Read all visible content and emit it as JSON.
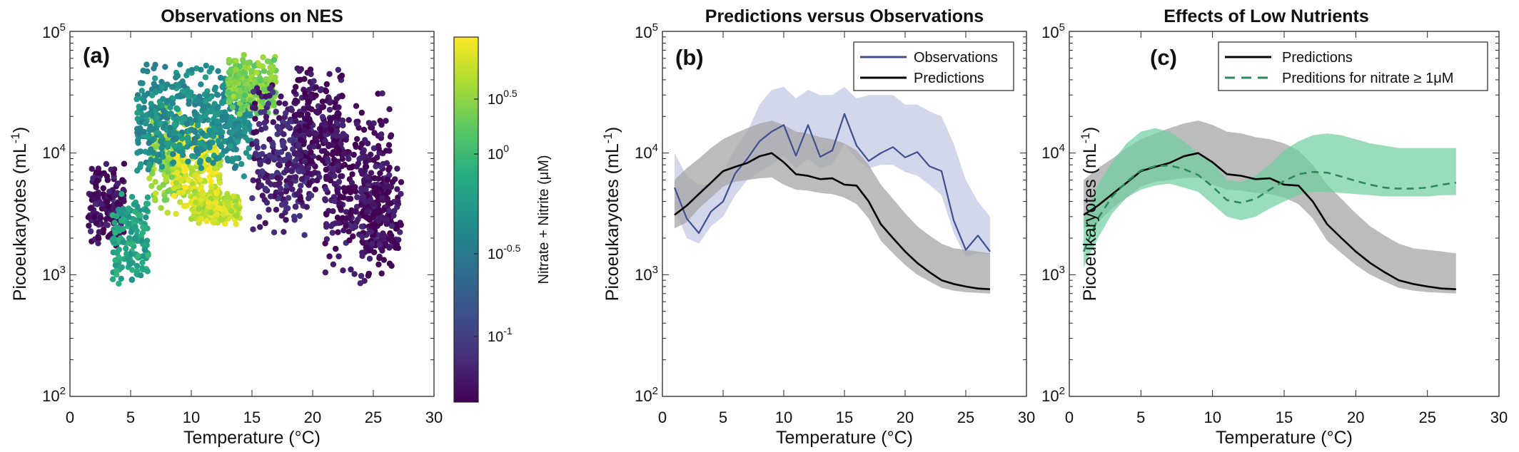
{
  "figure": {
    "panel_titles": [
      "Observations on NES",
      "Predictions versus Observations",
      "Effects of Low Nutrients"
    ],
    "panel_labels": [
      "(a)",
      "(b)",
      "(c)"
    ],
    "xlabel": "Temperature (°C)",
    "ylabel_main": "Picoeukaryotes (mL",
    "ylabel_sup": "-1",
    "ylabel_end": ")",
    "xticks": [
      "0",
      "5",
      "10",
      "15",
      "20",
      "25",
      "30"
    ],
    "yticks": [
      {
        "base": "10",
        "exp": "2"
      },
      {
        "base": "10",
        "exp": "3"
      },
      {
        "base": "10",
        "exp": "4"
      },
      {
        "base": "10",
        "exp": "5"
      }
    ],
    "colorbar": {
      "label": "Nitrate + Nitrite (μM)",
      "ticks": [
        {
          "base": "10",
          "exp": "0.5"
        },
        {
          "base": "10",
          "exp": "0"
        },
        {
          "base": "10",
          "exp": "-0.5"
        },
        {
          "base": "10",
          "exp": "-1"
        }
      ]
    },
    "legend_b": [
      "Observations",
      "Predictions"
    ],
    "legend_c": [
      "Predictions",
      "Preditions for nitrate ≥ 1μM"
    ],
    "colors": {
      "observations": "#3f4f8f",
      "observations_band": "#c3c9e4",
      "predictions": "#000000",
      "predictions_band": "#a6a6a6",
      "lownut": "#2b8a5a",
      "lownut_band": "#6fcf9f"
    }
  },
  "chart_data": [
    {
      "type": "scatter",
      "title": "Observations on NES",
      "xlabel": "Temperature (°C)",
      "ylabel": "Picoeukaryotes (mL-1)",
      "xlim": [
        0,
        30
      ],
      "ylim": [
        100,
        100000
      ],
      "yscale": "log",
      "color_scale": {
        "variable": "Nitrate + Nitrite (μM)",
        "scale": "log",
        "range": [
          0.05,
          8
        ],
        "colormap": "viridis"
      },
      "clusters": [
        {
          "x_range": [
            1.5,
            4.5
          ],
          "y_range": [
            1500,
            9000
          ],
          "nitrate_uM": 0.06
        },
        {
          "x_range": [
            3.5,
            6.5
          ],
          "y_range": [
            800,
            5000
          ],
          "nitrate_uM": 1.0
        },
        {
          "x_range": [
            6.5,
            9.5
          ],
          "y_range": [
            3000,
            30000
          ],
          "nitrate_uM": 3.5
        },
        {
          "x_range": [
            8.5,
            12.5
          ],
          "y_range": [
            2500,
            20000
          ],
          "nitrate_uM": 6.0
        },
        {
          "x_range": [
            10,
            14
          ],
          "y_range": [
            2500,
            5000
          ],
          "nitrate_uM": 5.0
        },
        {
          "x_range": [
            5.5,
            15
          ],
          "y_range": [
            6000,
            60000
          ],
          "nitrate_uM": 0.6
        },
        {
          "x_range": [
            13,
            17
          ],
          "y_range": [
            20000,
            65000
          ],
          "nitrate_uM": 3.0
        },
        {
          "x_range": [
            15,
            20
          ],
          "y_range": [
            2000,
            40000
          ],
          "nitrate_uM": 0.08
        },
        {
          "x_range": [
            18.5,
            22.5
          ],
          "y_range": [
            4000,
            60000
          ],
          "nitrate_uM": 0.06
        },
        {
          "x_range": [
            21,
            26.5
          ],
          "y_range": [
            700,
            40000
          ],
          "nitrate_uM": 0.06
        },
        {
          "x_range": [
            24,
            27.3
          ],
          "y_range": [
            1000,
            10000
          ],
          "nitrate_uM": 0.06
        }
      ]
    },
    {
      "type": "line",
      "title": "Predictions versus Observations",
      "xlabel": "Temperature (°C)",
      "ylabel": "Picoeukaryotes (mL-1)",
      "xlim": [
        0,
        30
      ],
      "ylim": [
        100,
        100000
      ],
      "yscale": "log",
      "legend": "top-right",
      "x": [
        1,
        2,
        3,
        4,
        5,
        6,
        7,
        8,
        9,
        10,
        11,
        12,
        13,
        14,
        15,
        16,
        17,
        18,
        19,
        20,
        21,
        22,
        23,
        24,
        25,
        26,
        27
      ],
      "series": [
        {
          "name": "Observations",
          "values": [
            5200,
            2900,
            2200,
            3300,
            4000,
            6800,
            9000,
            12500,
            15000,
            17000,
            9500,
            17000,
            9300,
            10500,
            21000,
            11500,
            8600,
            10000,
            11200,
            9200,
            10200,
            7800,
            7100,
            2800,
            1600,
            2100,
            1550
          ],
          "lower": [
            3500,
            2000,
            1800,
            2500,
            3000,
            4500,
            6000,
            7000,
            8000,
            9500,
            7500,
            9000,
            7500,
            8000,
            12000,
            9000,
            7500,
            8000,
            8000,
            7000,
            6500,
            5500,
            4500,
            2200,
            1400,
            1500,
            1450
          ],
          "upper": [
            10000,
            6500,
            5500,
            5500,
            7000,
            11000,
            15000,
            25000,
            33000,
            35000,
            28000,
            33000,
            30000,
            30000,
            35000,
            28000,
            30000,
            30000,
            30000,
            25000,
            25000,
            22000,
            20000,
            12000,
            6000,
            4000,
            3000
          ]
        },
        {
          "name": "Predictions",
          "values": [
            3100,
            3700,
            4600,
            5700,
            7100,
            7700,
            8300,
            9400,
            10000,
            8400,
            6700,
            6500,
            6100,
            6200,
            5500,
            5400,
            4000,
            2600,
            2000,
            1550,
            1250,
            1050,
            900,
            840,
            800,
            770,
            760
          ],
          "lower": [
            2400,
            2700,
            3500,
            4300,
            5300,
            5800,
            6000,
            6200,
            6300,
            5500,
            5000,
            4900,
            4700,
            4600,
            4300,
            3800,
            2900,
            1900,
            1500,
            1200,
            1000,
            880,
            780,
            740,
            720,
            710,
            700
          ],
          "upper": [
            6000,
            7500,
            9000,
            11000,
            13000,
            14500,
            16000,
            17500,
            18500,
            17000,
            15000,
            14500,
            13500,
            13000,
            12000,
            10500,
            8000,
            5500,
            4200,
            3200,
            2500,
            2100,
            1800,
            1650,
            1600,
            1550,
            1500
          ]
        }
      ]
    },
    {
      "type": "line",
      "title": "Effects of Low Nutrients",
      "xlabel": "Temperature (°C)",
      "ylabel": "Picoeukaryotes (mL-1)",
      "xlim": [
        0,
        30
      ],
      "ylim": [
        100,
        100000
      ],
      "yscale": "log",
      "legend": "top-right",
      "x": [
        1,
        2,
        3,
        4,
        5,
        6,
        7,
        8,
        9,
        10,
        11,
        12,
        13,
        14,
        15,
        16,
        17,
        18,
        19,
        20,
        21,
        22,
        23,
        24,
        25,
        26,
        27
      ],
      "series": [
        {
          "name": "Predictions",
          "values": [
            3100,
            3700,
            4600,
            5700,
            7100,
            7700,
            8300,
            9400,
            10000,
            8400,
            6700,
            6500,
            6100,
            6200,
            5500,
            5400,
            4000,
            2600,
            2000,
            1550,
            1250,
            1050,
            900,
            840,
            800,
            770,
            760
          ],
          "lower": [
            2400,
            2700,
            3500,
            4300,
            5300,
            5800,
            6000,
            6200,
            6300,
            5500,
            5000,
            4900,
            4700,
            4600,
            4300,
            3800,
            2900,
            1900,
            1500,
            1200,
            1000,
            880,
            780,
            740,
            720,
            710,
            700
          ],
          "upper": [
            6000,
            7500,
            9000,
            11000,
            13000,
            14500,
            16000,
            17500,
            18500,
            17000,
            15000,
            14500,
            13500,
            13000,
            12000,
            10500,
            8000,
            5500,
            4200,
            3200,
            2500,
            2100,
            1800,
            1650,
            1600,
            1550,
            1500
          ]
        },
        {
          "name": "Preditions for nitrate ≥ 1μM",
          "values": [
            1550,
            2900,
            4400,
            5800,
            7200,
            7800,
            7900,
            7400,
            6600,
            5300,
            4100,
            3900,
            4200,
            5000,
            5900,
            6700,
            7000,
            6900,
            6400,
            5900,
            5500,
            5200,
            5100,
            5100,
            5200,
            5500,
            5700
          ],
          "lower": [
            1150,
            2000,
            3200,
            4300,
            5000,
            5400,
            5600,
            5200,
            4800,
            3800,
            3000,
            2800,
            3000,
            3500,
            4000,
            4500,
            4800,
            4800,
            4700,
            4600,
            4500,
            4400,
            4400,
            4400,
            4400,
            4500,
            4500
          ],
          "upper": [
            2800,
            5500,
            8500,
            12000,
            15000,
            16000,
            15000,
            12500,
            10000,
            8500,
            6000,
            5800,
            6500,
            8000,
            10500,
            12500,
            14000,
            14500,
            14000,
            13000,
            12000,
            11500,
            11000,
            11000,
            11000,
            11000,
            11000
          ]
        }
      ]
    }
  ]
}
